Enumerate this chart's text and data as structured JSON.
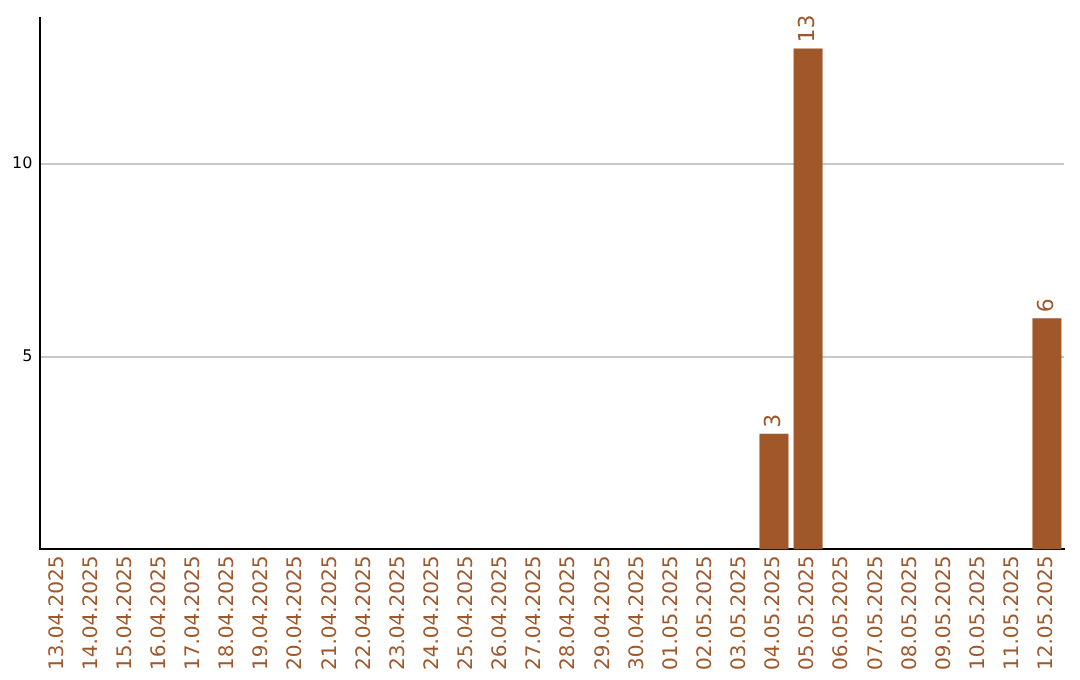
{
  "chart_data": {
    "type": "bar",
    "categories": [
      "13.04.2025",
      "14.04.2025",
      "15.04.2025",
      "16.04.2025",
      "17.04.2025",
      "18.04.2025",
      "19.04.2025",
      "20.04.2025",
      "21.04.2025",
      "22.04.2025",
      "23.04.2025",
      "24.04.2025",
      "25.04.2025",
      "26.04.2025",
      "27.04.2025",
      "28.04.2025",
      "29.04.2025",
      "30.04.2025",
      "01.05.2025",
      "02.05.2025",
      "03.05.2025",
      "04.05.2025",
      "05.05.2025",
      "06.05.2025",
      "07.05.2025",
      "08.05.2025",
      "09.05.2025",
      "10.05.2025",
      "11.05.2025",
      "12.05.2025"
    ],
    "values": [
      null,
      null,
      null,
      null,
      null,
      null,
      null,
      null,
      null,
      null,
      null,
      null,
      null,
      null,
      null,
      null,
      null,
      null,
      null,
      null,
      null,
      3,
      13,
      null,
      null,
      null,
      null,
      null,
      null,
      6
    ],
    "color": "#a0572a",
    "ylim": [
      0,
      13.8
    ],
    "yticks": [
      5,
      10
    ],
    "grid": "y",
    "data_labels": true,
    "legend": false
  }
}
